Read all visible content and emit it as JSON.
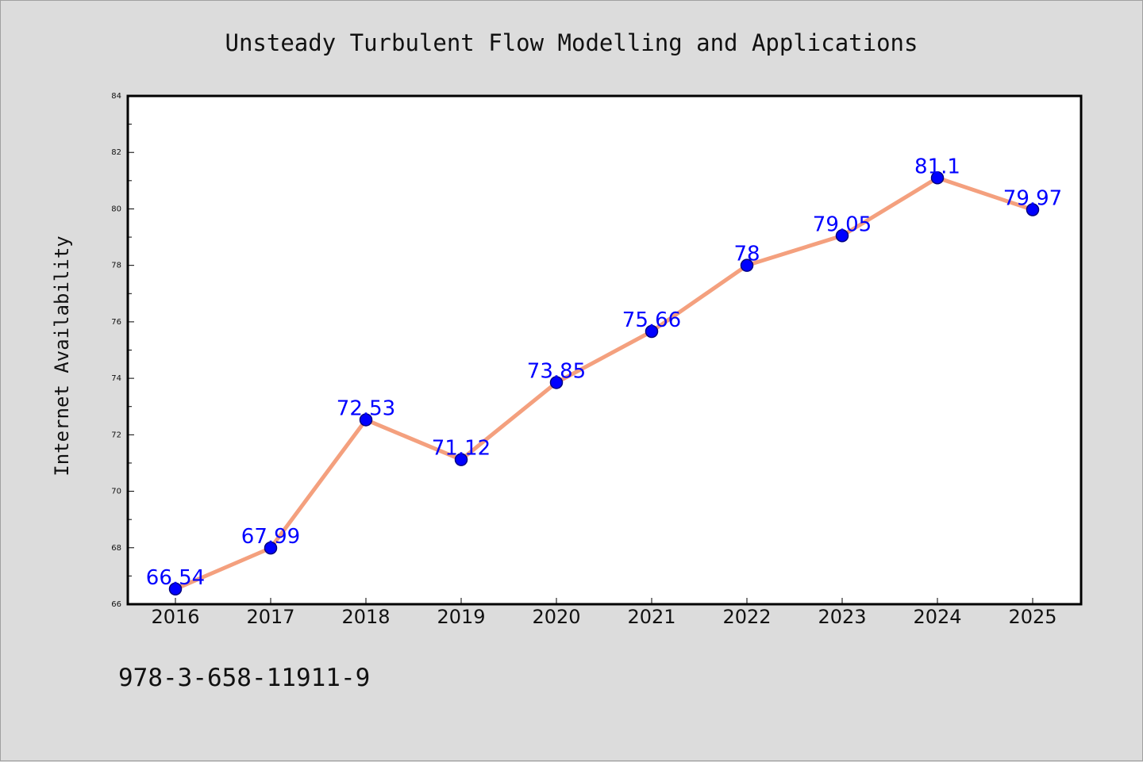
{
  "chart_data": {
    "type": "line",
    "title": "Unsteady Turbulent Flow Modelling and Applications",
    "xlabel": "",
    "ylabel": "Internet Availability",
    "categories": [
      "2016",
      "2017",
      "2018",
      "2019",
      "2020",
      "2021",
      "2022",
      "2023",
      "2024",
      "2025"
    ],
    "series": [
      {
        "values": [
          66.54,
          67.99,
          72.53,
          71.12,
          73.85,
          75.66,
          78,
          79.05,
          81.1,
          79.97
        ],
        "labels": [
          "66.54",
          "67.99",
          "72.53",
          "71.12",
          "73.85",
          "75.66",
          "78",
          "79.05",
          "81.1",
          "79.97"
        ]
      }
    ],
    "ylim": [
      66,
      84
    ],
    "yticks": [
      "66",
      "68",
      "70",
      "72",
      "74",
      "76",
      "78",
      "80",
      "82",
      "84"
    ],
    "grid": false,
    "legend": "none",
    "colors": {
      "line": "#f4a07e",
      "marker": "#0000ff",
      "marker_edge": "#000080",
      "data_label": "#0000ff",
      "plot_bg": "#ffffff",
      "page_bg": "#dcdcdc"
    }
  },
  "footer": {
    "isbn": "978-3-658-11911-9"
  }
}
